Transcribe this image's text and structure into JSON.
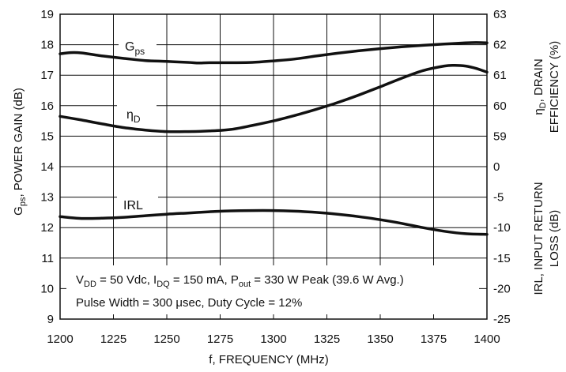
{
  "chart_data": {
    "type": "line",
    "x_axis": {
      "label": "f, FREQUENCY (MHz)",
      "min": 1200,
      "max": 1400,
      "step": 25,
      "ticks": [
        "1200",
        "1225",
        "1250",
        "1275",
        "1300",
        "1325",
        "1350",
        "1375",
        "1400"
      ]
    },
    "y_left": {
      "label_main": "G",
      "label_sub": "ps",
      "label_rest": ", POWER GAIN (dB)",
      "min": 9,
      "max": 19,
      "step": 1,
      "ticks": [
        "9",
        "10",
        "11",
        "12",
        "13",
        "14",
        "15",
        "16",
        "17",
        "18",
        "19"
      ]
    },
    "y_right_top": {
      "label_line1_main": "η",
      "label_line1_sub": "D",
      "label_line1_rest": ", DRAIN",
      "label_line2": "EFFICIENCY (%)",
      "ticks": [
        "63",
        "62",
        "61",
        "60",
        "59",
        "0"
      ]
    },
    "y_right_bottom": {
      "label_line1": "IRL, INPUT RETURN",
      "label_line2": "LOSS (dB)",
      "ticks": [
        "-5",
        "-10",
        "-15",
        "-20",
        "-25"
      ]
    },
    "grid": true,
    "series": [
      {
        "name": "Gps",
        "label_main": "G",
        "label_sub": "ps",
        "axis": "left",
        "unit": "dB",
        "x": [
          1200,
          1205,
          1210,
          1220,
          1230,
          1240,
          1250,
          1260,
          1265,
          1270,
          1280,
          1290,
          1300,
          1310,
          1320,
          1330,
          1340,
          1350,
          1360,
          1370,
          1380,
          1390,
          1395,
          1400
        ],
        "y": [
          17.7,
          17.74,
          17.73,
          17.63,
          17.55,
          17.48,
          17.45,
          17.42,
          17.4,
          17.41,
          17.41,
          17.42,
          17.47,
          17.53,
          17.63,
          17.72,
          17.8,
          17.87,
          17.93,
          17.98,
          18.02,
          18.06,
          18.07,
          18.06
        ]
      },
      {
        "name": "ηD",
        "label_main": "η",
        "label_sub": "D",
        "axis": "right",
        "unit": "%",
        "x": [
          1200,
          1210,
          1220,
          1230,
          1240,
          1250,
          1260,
          1270,
          1280,
          1290,
          1300,
          1310,
          1320,
          1330,
          1340,
          1350,
          1360,
          1370,
          1380,
          1385,
          1390,
          1395,
          1400
        ],
        "y": [
          59.65,
          59.53,
          59.4,
          59.28,
          59.2,
          59.15,
          59.15,
          59.17,
          59.22,
          59.35,
          59.5,
          59.68,
          59.88,
          60.1,
          60.35,
          60.62,
          60.9,
          61.15,
          61.3,
          61.32,
          61.3,
          61.22,
          61.1
        ]
      },
      {
        "name": "IRL",
        "label_main": "IRL",
        "label_sub": "",
        "axis": "right",
        "unit": "dB",
        "x": [
          1200,
          1210,
          1220,
          1230,
          1240,
          1250,
          1260,
          1270,
          1280,
          1290,
          1300,
          1310,
          1320,
          1330,
          1340,
          1350,
          1360,
          1370,
          1380,
          1390,
          1400
        ],
        "y": [
          -8.2,
          -8.5,
          -8.45,
          -8.3,
          -8.05,
          -7.8,
          -7.6,
          -7.4,
          -7.25,
          -7.2,
          -7.2,
          -7.3,
          -7.5,
          -7.8,
          -8.2,
          -8.7,
          -9.3,
          -10.0,
          -10.6,
          -11.0,
          -11.1
        ]
      }
    ],
    "annotation": {
      "line1": [
        {
          "t": "V"
        },
        {
          "t": "DD",
          "sub": true
        },
        {
          "t": " = 50 Vdc, I"
        },
        {
          "t": "DQ",
          "sub": true
        },
        {
          "t": " = 150 mA, P"
        },
        {
          "t": "out",
          "sub": true
        },
        {
          "t": " = 330 W Peak (39.6 W Avg.)"
        }
      ],
      "line2": [
        {
          "t": "Pulse Width = 300 "
        },
        {
          "t": "μ"
        },
        {
          "t": "sec, Duty Cycle = 12%"
        }
      ]
    }
  }
}
